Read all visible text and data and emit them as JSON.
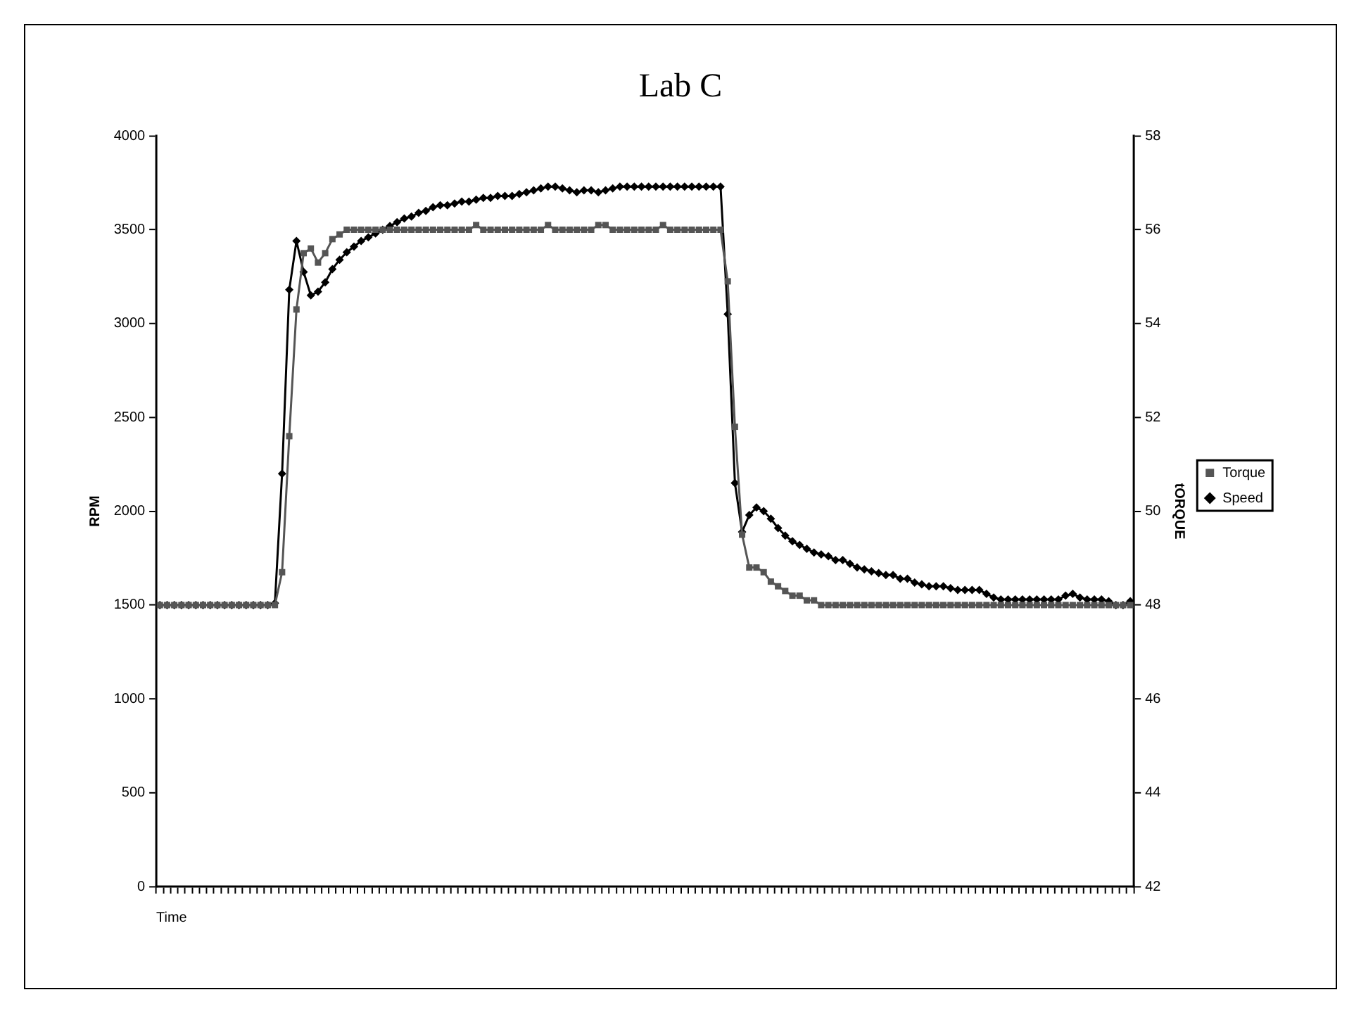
{
  "chart_data": {
    "type": "line",
    "title": "Lab C",
    "xlabel": "Time",
    "ylabel": "RPM",
    "y2label": "tORQUE",
    "categories": [
      null,
      null,
      null,
      null,
      null,
      null,
      null,
      null,
      null,
      null,
      null,
      null,
      null,
      null,
      null,
      null,
      null,
      null,
      null,
      null,
      null,
      null,
      null,
      null,
      null,
      null,
      null,
      null,
      null,
      null,
      null,
      null,
      null,
      null,
      null,
      null,
      null,
      null,
      null,
      null,
      null,
      null,
      null,
      null,
      null,
      null,
      null,
      null,
      null,
      null,
      null,
      null,
      null,
      null,
      null,
      null,
      null,
      null,
      null,
      null,
      null,
      null,
      null,
      null,
      null,
      null,
      null,
      null,
      null,
      null,
      null,
      null,
      null,
      null,
      null,
      null,
      null,
      null,
      null,
      null,
      null,
      null,
      null,
      null,
      null,
      null,
      null,
      null,
      null,
      null,
      null,
      null,
      null,
      null,
      null,
      null,
      null,
      null,
      null,
      null,
      null,
      null,
      null,
      null,
      null,
      null,
      null,
      null,
      null,
      null,
      null,
      null,
      null,
      null,
      null,
      null,
      null,
      null,
      null,
      null,
      null,
      null,
      null,
      null,
      null,
      null,
      null,
      null,
      null,
      null,
      null,
      null,
      null,
      null,
      null,
      null
    ],
    "series": [
      {
        "name": "Torque",
        "color": "#555555",
        "axis": "y2",
        "marker": "square",
        "values": [
          48,
          48,
          48,
          48,
          48,
          48,
          48,
          48,
          48,
          48,
          48,
          48,
          48,
          48,
          48,
          48,
          48,
          48.7,
          51.6,
          54.3,
          55.5,
          55.6,
          55.3,
          55.5,
          55.8,
          55.9,
          56,
          56,
          56,
          56,
          56,
          56,
          56,
          56,
          56,
          56,
          56,
          56,
          56,
          56,
          56,
          56,
          56,
          56,
          56.1,
          56,
          56,
          56,
          56,
          56,
          56,
          56,
          56,
          56,
          56.1,
          56,
          56,
          56,
          56,
          56,
          56,
          56.1,
          56.1,
          56,
          56,
          56,
          56,
          56,
          56,
          56,
          56.1,
          56,
          56,
          56,
          56,
          56,
          56,
          56,
          56,
          54.9,
          51.8,
          49.5,
          48.8,
          48.8,
          48.7,
          48.5,
          48.4,
          48.3,
          48.2,
          48.2,
          48.1,
          48.1,
          48,
          48,
          48,
          48,
          48,
          48,
          48,
          48,
          48,
          48,
          48,
          48,
          48,
          48,
          48,
          48,
          48,
          48,
          48,
          48,
          48,
          48,
          48,
          48,
          48,
          48,
          48,
          48,
          48,
          48,
          48,
          48,
          48,
          48,
          48,
          48,
          48,
          48,
          48,
          48,
          48,
          48,
          48,
          48
        ]
      },
      {
        "name": "Speed",
        "color": "#000000",
        "axis": "y",
        "marker": "diamond",
        "values": [
          1500,
          1500,
          1500,
          1500,
          1500,
          1500,
          1500,
          1500,
          1500,
          1500,
          1500,
          1500,
          1500,
          1500,
          1500,
          1500,
          1510,
          2200,
          3180,
          3440,
          3275,
          3150,
          3170,
          3220,
          3290,
          3340,
          3380,
          3410,
          3440,
          3460,
          3480,
          3500,
          3520,
          3540,
          3560,
          3570,
          3590,
          3600,
          3620,
          3630,
          3630,
          3640,
          3650,
          3650,
          3660,
          3670,
          3670,
          3680,
          3680,
          3680,
          3690,
          3700,
          3710,
          3720,
          3730,
          3730,
          3720,
          3710,
          3700,
          3710,
          3710,
          3700,
          3710,
          3720,
          3730,
          3730,
          3730,
          3730,
          3730,
          3730,
          3730,
          3730,
          3730,
          3730,
          3730,
          3730,
          3730,
          3730,
          3730,
          3050,
          2150,
          1890,
          1980,
          2020,
          2000,
          1960,
          1910,
          1870,
          1840,
          1820,
          1800,
          1780,
          1770,
          1760,
          1740,
          1740,
          1720,
          1700,
          1690,
          1680,
          1670,
          1660,
          1660,
          1640,
          1640,
          1620,
          1610,
          1600,
          1600,
          1600,
          1590,
          1580,
          1580,
          1580,
          1580,
          1560,
          1540,
          1530,
          1530,
          1530,
          1530,
          1530,
          1530,
          1530,
          1530,
          1530,
          1550,
          1560,
          1540,
          1530,
          1530,
          1530,
          1520,
          1500,
          1500,
          1520
        ]
      }
    ],
    "ylim": [
      0,
      4000
    ],
    "yticks": [
      0,
      500,
      1000,
      1500,
      2000,
      2500,
      3000,
      3500,
      4000
    ],
    "y2lim": [
      42,
      58
    ],
    "y2ticks": [
      42,
      44,
      46,
      48,
      50,
      52,
      54,
      56,
      58
    ],
    "grid": false,
    "legend": "right",
    "line_style": "solid"
  }
}
